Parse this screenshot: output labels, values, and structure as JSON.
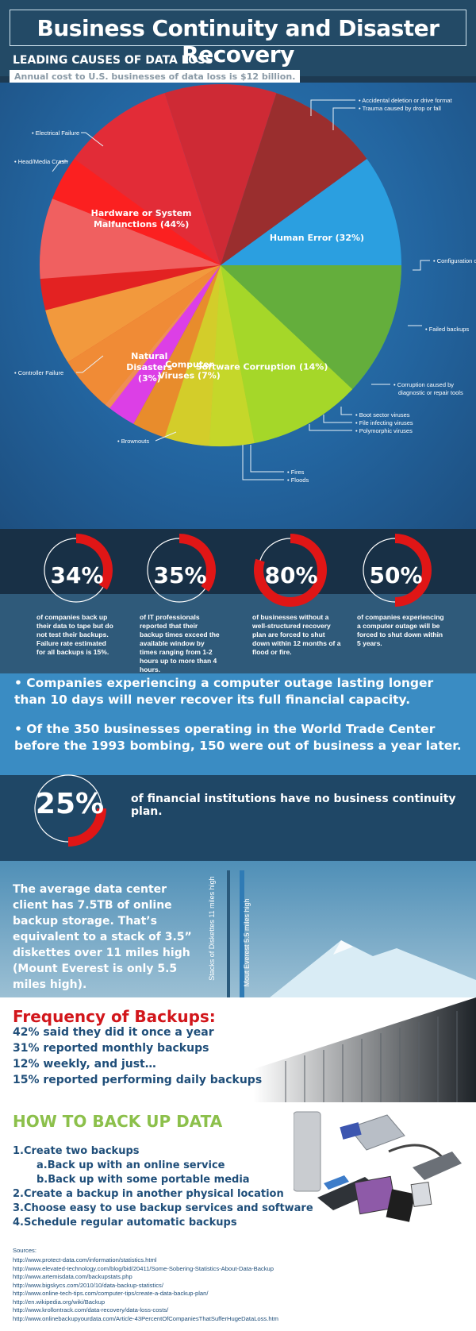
{
  "header": {
    "title": "Business Continuity and Disaster Recovery",
    "section_title": "LEADING CAUSES OF DATA LOSS",
    "annual_cost": "Annual cost to U.S. businesses of data loss is $12 billion."
  },
  "chart_data": {
    "type": "pie",
    "slices": [
      {
        "label": "Human Error (32%)",
        "value": 32,
        "color": "#2b9fe0"
      },
      {
        "label": "Software Corruption (14%)",
        "value": 14,
        "color": "#8fcc2c"
      },
      {
        "label": "Computer Viruses (7%)",
        "value": 7,
        "color": "#e88c2c"
      },
      {
        "label": "Natural Disasters (3%)",
        "value": 3,
        "color": "#dc3fe6"
      },
      {
        "label": "Hardware or System Malfunctions (44%)",
        "value": 44,
        "color": "#e32222"
      }
    ],
    "callouts": [
      "• Accidental deletion or drive format",
      "• Trauma caused by drop or fall",
      "• Configuration complexity",
      "• Failed backups",
      "• Corruption caused by diagnostic or repair tools",
      "• Boot sector viruses",
      "• File infecting viruses",
      "• Polymorphic viruses",
      "• Fires",
      "• Floods",
      "• Brownouts",
      "• Controller Failure",
      "• Head/Media Crash",
      "• Electrical Failure"
    ]
  },
  "stats": [
    {
      "value": "34%",
      "desc": "of companies back up their data to tape but do not test their backups. Failure rate estimated for all backups is 15%."
    },
    {
      "value": "35%",
      "desc": "of IT professionals reported that their backup times exceed the available window by times ranging from 1-2 hours up to more than 4 hours."
    },
    {
      "value": "80%",
      "desc": "of businesses without a well-structured recovery plan are forced to shut down within 12 months of a flood or fire."
    },
    {
      "value": "50%",
      "desc": "of companies experiencing a computer outage will be forced to shut down within 5 years."
    }
  ],
  "bullets": [
    "• Companies experiencing a computer outage lasting longer than 10 days will never recover its full financial capacity.",
    "• Of the 350 businesses operating in the World Trade Center before the 1993 bombing, 150 were out of business a year later."
  ],
  "financial": {
    "value": "25%",
    "text": "of financial institutions have no business continuity plan."
  },
  "datacenter": {
    "text": "The average data center client has 7.5TB of online backup storage. That’s equivalent to a stack of 3.5” diskettes over 11 miles high (Mount Everest is only 5.5 miles high).",
    "bar1_label": "Stacks of Diskettes 11 miles high",
    "bar2_label": "Mout Everest 5.5 miles high"
  },
  "frequency": {
    "title": "Frequency of Backups:",
    "lines": [
      "42% said they did it once a year",
      "31% reported monthly backups",
      "12% weekly, and just…",
      "15% reported performing daily backups"
    ]
  },
  "howto": {
    "title": "HOW TO BACK UP DATA",
    "lines": [
      "1.Create two backups",
      "a.Back up with an online service",
      "b.Back up with some portable media",
      "2.Create a backup in another physical location",
      "3.Choose easy to use backup services and software",
      "4.Schedule regular automatic backups"
    ]
  },
  "sources": {
    "label": "Sources:",
    "urls": [
      "http://www.protect-data.com/information/statistics.html",
      "http://www.elevated-technology.com/blog/bid/20411/Some-Sobering-Statistics-About-Data-Backup",
      "http://www.artemisdata.com/backupstats.php",
      "http://www.bigskycs.com/2010/10/data-backup-statistics/",
      "http://www.online-tech-tips.com/computer-tips/create-a-data-backup-plan/",
      "http://en.wikipedia.org/wiki/Backup",
      "http://www.krollontrack.com/data-recovery/data-loss-costs/",
      "http://www.onlinebackupyourdata.com/Article-43PercentOfCompaniesThatSufferHugeDataLoss.htm"
    ]
  }
}
